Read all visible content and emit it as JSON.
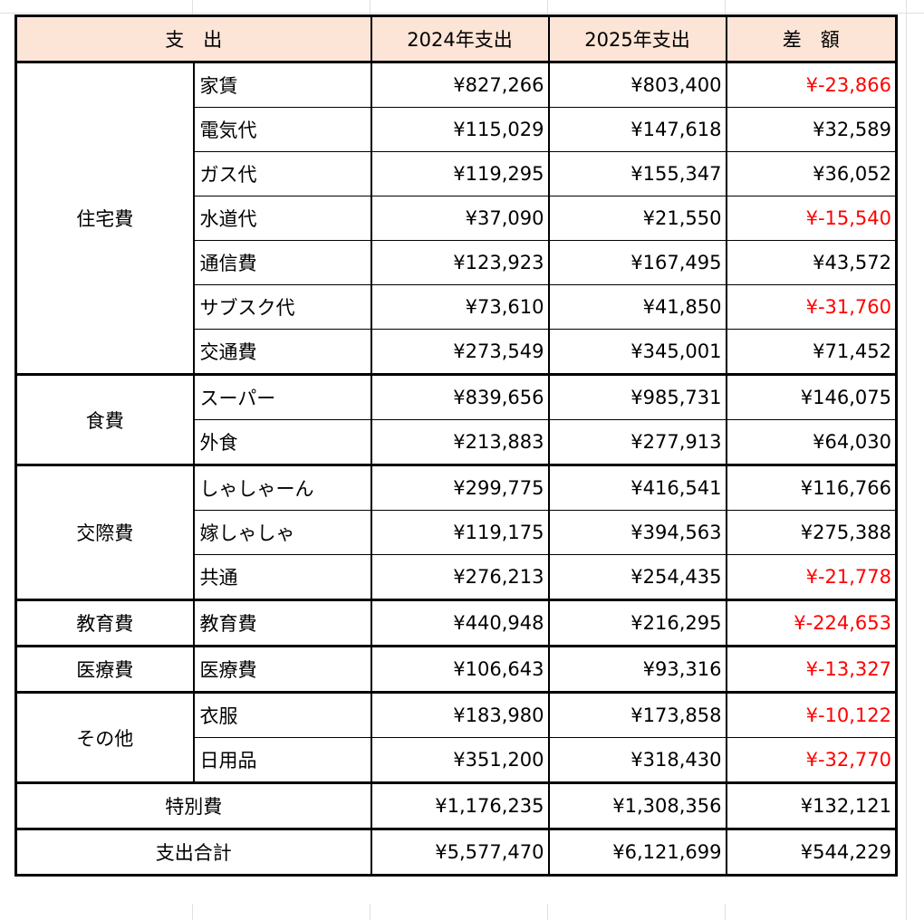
{
  "header": [
    "支　出",
    "2024年支出",
    "2025年支出",
    "差　額"
  ],
  "groups": [
    {
      "category": "住宅費",
      "items": [
        {
          "name": "家賃",
          "y2024": "¥827,266",
          "y2025": "¥803,400",
          "diff": "¥-23,866"
        },
        {
          "name": "電気代",
          "y2024": "¥115,029",
          "y2025": "¥147,618",
          "diff": "¥32,589"
        },
        {
          "name": "ガス代",
          "y2024": "¥119,295",
          "y2025": "¥155,347",
          "diff": "¥36,052"
        },
        {
          "name": "水道代",
          "y2024": "¥37,090",
          "y2025": "¥21,550",
          "diff": "¥-15,540"
        },
        {
          "name": "通信費",
          "y2024": "¥123,923",
          "y2025": "¥167,495",
          "diff": "¥43,572"
        },
        {
          "name": "サブスク代",
          "y2024": "¥73,610",
          "y2025": "¥41,850",
          "diff": "¥-31,760"
        },
        {
          "name": "交通費",
          "y2024": "¥273,549",
          "y2025": "¥345,001",
          "diff": "¥71,452"
        }
      ]
    },
    {
      "category": "食費",
      "items": [
        {
          "name": "スーパー",
          "y2024": "¥839,656",
          "y2025": "¥985,731",
          "diff": "¥146,075"
        },
        {
          "name": "外食",
          "y2024": "¥213,883",
          "y2025": "¥277,913",
          "diff": "¥64,030"
        }
      ]
    },
    {
      "category": "交際費",
      "items": [
        {
          "name": "しゃしゃーん",
          "y2024": "¥299,775",
          "y2025": "¥416,541",
          "diff": "¥116,766"
        },
        {
          "name": "嫁しゃしゃ",
          "y2024": "¥119,175",
          "y2025": "¥394,563",
          "diff": "¥275,388"
        },
        {
          "name": "共通",
          "y2024": "¥276,213",
          "y2025": "¥254,435",
          "diff": "¥-21,778"
        }
      ]
    },
    {
      "category": "教育費",
      "items": [
        {
          "name": "教育費",
          "y2024": "¥440,948",
          "y2025": "¥216,295",
          "diff": "¥-224,653"
        }
      ]
    },
    {
      "category": "医療費",
      "items": [
        {
          "name": "医療費",
          "y2024": "¥106,643",
          "y2025": "¥93,316",
          "diff": "¥-13,327"
        }
      ]
    },
    {
      "category": "その他",
      "items": [
        {
          "name": "衣服",
          "y2024": "¥183,980",
          "y2025": "¥173,858",
          "diff": "¥-10,122"
        },
        {
          "name": "日用品",
          "y2024": "¥351,200",
          "y2025": "¥318,430",
          "diff": "¥-32,770"
        }
      ]
    }
  ],
  "totals": [
    {
      "label": "特別費",
      "y2024": "¥1,176,235",
      "y2025": "¥1,308,356",
      "diff": "¥132,121"
    },
    {
      "label": "支出合計",
      "y2024": "¥5,577,470",
      "y2025": "¥6,121,699",
      "diff": "¥544,229"
    }
  ],
  "header_color": "#fce4d6",
  "negative_color": "#ff0000"
}
